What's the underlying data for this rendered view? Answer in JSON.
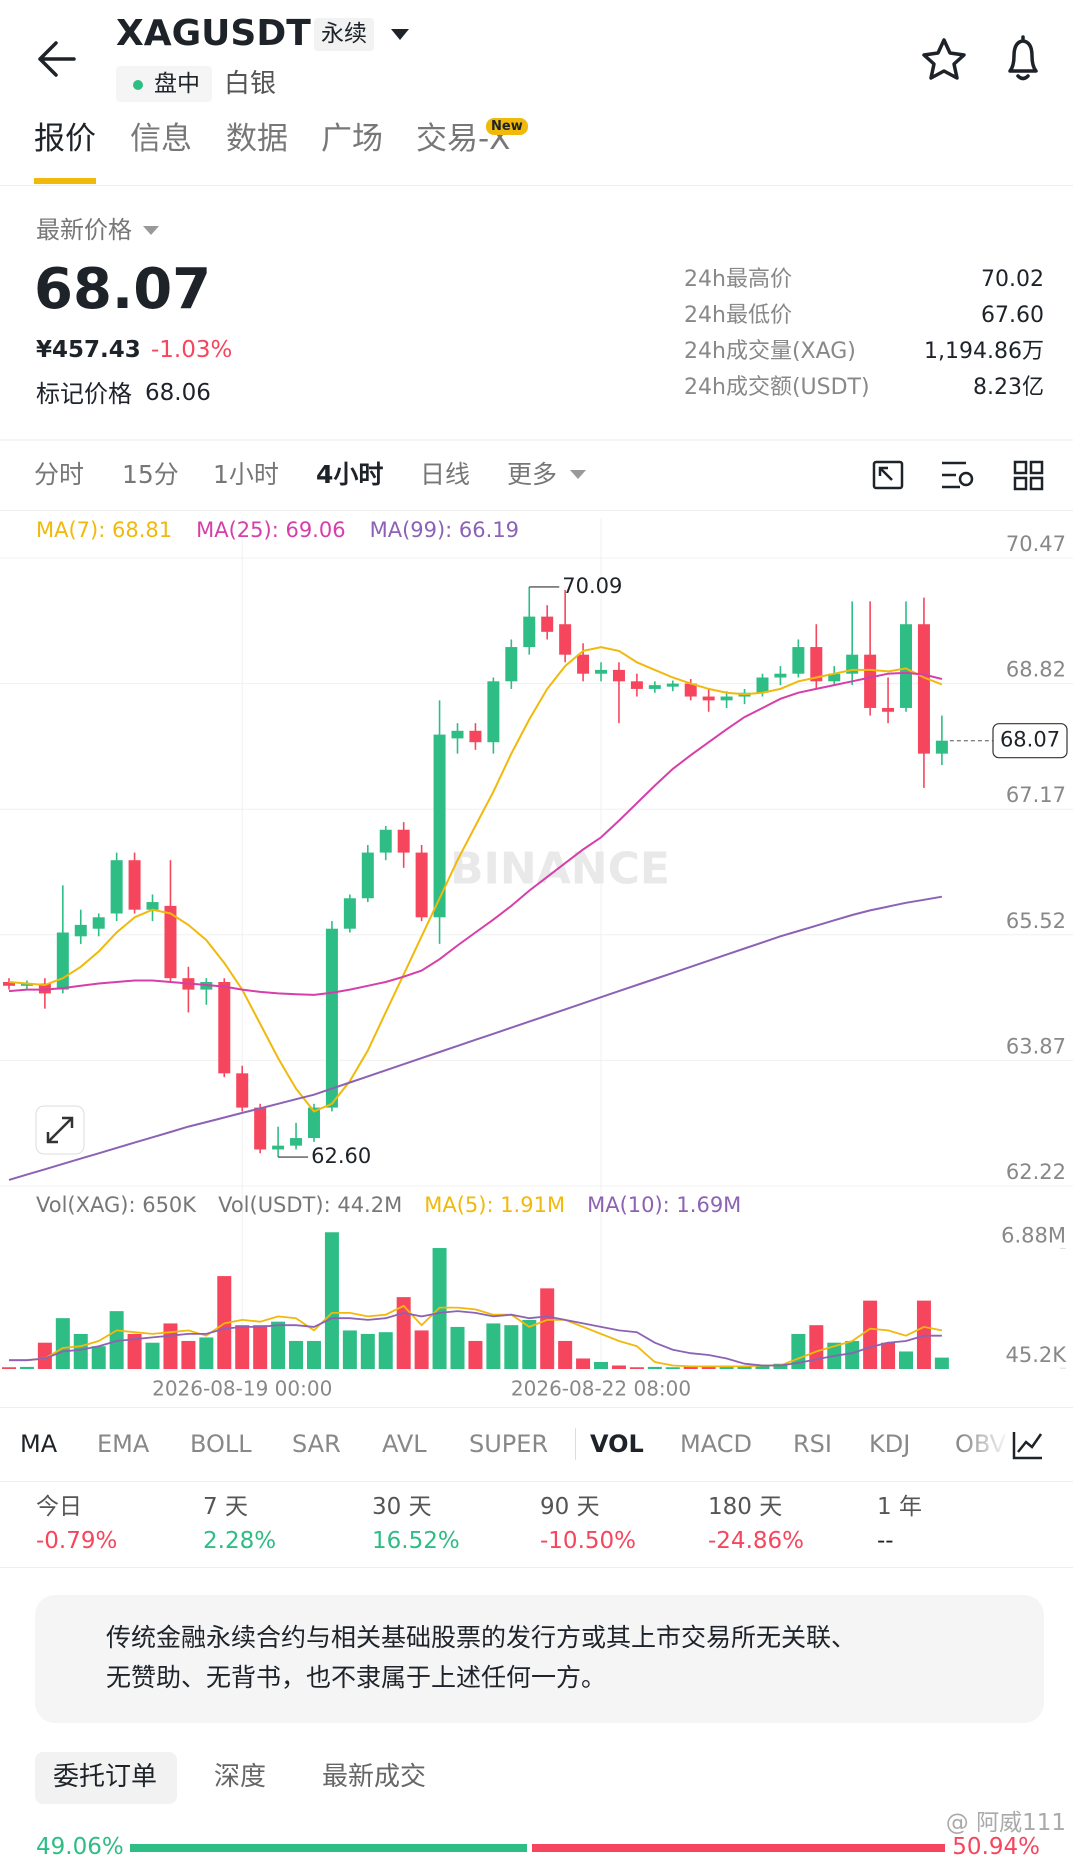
{
  "header": {
    "title": "XAGUSDT",
    "contract": "永续",
    "status": "盘中",
    "name": "白银"
  },
  "tabs": [
    "报价",
    "信息",
    "数据",
    "广场",
    "交易-X"
  ],
  "new_badge": "New",
  "price": {
    "label": "最新价格",
    "last": "68.07",
    "cny": "¥457.43",
    "change": "-1.03%",
    "mark_label": "标记价格",
    "mark": "68.06"
  },
  "stats": [
    [
      "24h最高价",
      "70.02"
    ],
    [
      "24h最低价",
      "67.60"
    ],
    [
      "24h成交量(XAG)",
      "1,194.86万"
    ],
    [
      "24h成交额(USDT)",
      "8.23亿"
    ]
  ],
  "intervals": [
    "分时",
    "15分",
    "1小时",
    "4小时",
    "日线",
    "更多"
  ],
  "chart_data": {
    "type": "candlestick",
    "watermark": "BINANCE",
    "categories": [
      null,
      null,
      null,
      null,
      null,
      null,
      null,
      null,
      null,
      null,
      null,
      null,
      null,
      "2026-08-19 00:00",
      null,
      null,
      null,
      null,
      null,
      null,
      null,
      null,
      null,
      null,
      null,
      null,
      null,
      null,
      null,
      null,
      null,
      null,
      null,
      "2026-08-22 08:00",
      null,
      null,
      null,
      null,
      null,
      null,
      null,
      null,
      null,
      null,
      null,
      null,
      null,
      null,
      null,
      null,
      null,
      null,
      null
    ],
    "open": [
      64.9,
      64.85,
      64.88,
      64.8,
      65.5,
      65.6,
      65.8,
      66.5,
      65.85,
      65.9,
      64.95,
      64.8,
      64.9,
      63.7,
      63.25,
      62.7,
      62.75,
      62.85,
      63.25,
      65.6,
      66.0,
      66.6,
      66.9,
      66.6,
      65.75,
      68.1,
      68.2,
      68.05,
      68.85,
      69.3,
      69.7,
      69.6,
      69.2,
      68.95,
      69.0,
      68.85,
      68.75,
      68.78,
      68.82,
      68.65,
      68.6,
      68.65,
      68.7,
      68.9,
      68.95,
      69.3,
      68.85,
      68.95,
      69.2,
      68.5,
      68.5,
      69.6,
      67.9
    ],
    "high": [
      64.95,
      64.92,
      64.95,
      66.17,
      65.85,
      65.8,
      66.6,
      66.6,
      66.05,
      66.5,
      65.1,
      64.95,
      64.95,
      63.8,
      63.3,
      63.0,
      63.05,
      63.3,
      65.7,
      66.05,
      66.7,
      66.95,
      67.0,
      66.7,
      68.6,
      68.3,
      68.3,
      68.9,
      69.4,
      70.09,
      69.85,
      70.05,
      69.35,
      69.1,
      69.1,
      68.95,
      68.85,
      68.86,
      68.88,
      68.75,
      68.72,
      68.75,
      68.95,
      69.05,
      69.4,
      69.6,
      69.05,
      69.9,
      69.9,
      68.9,
      69.9,
      69.95,
      68.4
    ],
    "low": [
      64.8,
      64.8,
      64.55,
      64.75,
      65.4,
      65.5,
      65.7,
      65.8,
      65.7,
      64.9,
      64.5,
      64.6,
      63.65,
      63.2,
      62.65,
      62.6,
      62.7,
      62.8,
      63.2,
      65.55,
      65.95,
      66.5,
      66.4,
      65.7,
      65.4,
      67.9,
      67.95,
      67.9,
      68.75,
      69.2,
      69.4,
      69.1,
      68.85,
      68.85,
      68.3,
      68.65,
      68.7,
      68.72,
      68.6,
      68.45,
      68.5,
      68.55,
      68.65,
      68.8,
      68.9,
      68.75,
      68.8,
      68.8,
      68.4,
      68.3,
      68.45,
      67.45,
      67.75
    ],
    "close": [
      64.85,
      64.88,
      64.75,
      65.55,
      65.65,
      65.75,
      66.5,
      65.85,
      65.95,
      64.95,
      64.8,
      64.9,
      63.7,
      63.25,
      62.7,
      62.75,
      62.85,
      63.25,
      65.6,
      66.0,
      66.6,
      66.9,
      66.6,
      65.75,
      68.15,
      68.2,
      68.05,
      68.85,
      69.3,
      69.7,
      69.5,
      69.2,
      68.95,
      69.0,
      68.85,
      68.75,
      68.8,
      68.82,
      68.65,
      68.6,
      68.65,
      68.7,
      68.9,
      68.95,
      69.3,
      68.85,
      68.95,
      69.2,
      68.5,
      68.45,
      69.6,
      67.9,
      68.07
    ],
    "up_color": "#2ebd85",
    "down_color": "#f6465d",
    "ma": [
      {
        "name": "MA(7)",
        "label": "MA(7): 68.81",
        "color": "#f0b90b",
        "values": [
          64.9,
          64.88,
          64.86,
          64.95,
          65.1,
          65.3,
          65.55,
          65.75,
          65.85,
          65.8,
          65.65,
          65.45,
          65.15,
          64.8,
          64.35,
          63.9,
          63.5,
          63.2,
          63.3,
          63.6,
          64.0,
          64.5,
          65.0,
          65.5,
          66.0,
          66.5,
          66.95,
          67.4,
          67.9,
          68.35,
          68.75,
          69.05,
          69.25,
          69.3,
          69.25,
          69.1,
          69.0,
          68.9,
          68.82,
          68.75,
          68.7,
          68.68,
          68.7,
          68.75,
          68.85,
          68.9,
          68.95,
          69.0,
          69.0,
          68.98,
          69.02,
          68.9,
          68.81
        ]
      },
      {
        "name": "MA(25)",
        "label": "MA(25): 69.06",
        "color": "#d63fa8",
        "values": [
          64.78,
          64.8,
          64.8,
          64.82,
          64.85,
          64.88,
          64.9,
          64.92,
          64.92,
          64.9,
          64.88,
          64.86,
          64.84,
          64.8,
          64.77,
          64.75,
          64.74,
          64.73,
          64.76,
          64.8,
          64.85,
          64.9,
          64.97,
          65.05,
          65.2,
          65.38,
          65.55,
          65.72,
          65.9,
          66.1,
          66.28,
          66.46,
          66.64,
          66.8,
          67.02,
          67.25,
          67.48,
          67.7,
          67.88,
          68.05,
          68.22,
          68.38,
          68.5,
          68.62,
          68.7,
          68.75,
          68.8,
          68.85,
          68.9,
          68.95,
          68.96,
          68.94,
          68.88
        ]
      },
      {
        "name": "MA(99)",
        "label": "MA(99): 66.19",
        "color": "#8c62b5",
        "values": [
          62.3,
          62.37,
          62.44,
          62.51,
          62.58,
          62.65,
          62.72,
          62.79,
          62.86,
          62.93,
          63.0,
          63.06,
          63.12,
          63.18,
          63.24,
          63.3,
          63.36,
          63.42,
          63.5,
          63.58,
          63.66,
          63.74,
          63.82,
          63.9,
          63.98,
          64.06,
          64.14,
          64.22,
          64.3,
          64.38,
          64.46,
          64.54,
          64.62,
          64.7,
          64.78,
          64.86,
          64.94,
          65.02,
          65.1,
          65.18,
          65.26,
          65.34,
          65.42,
          65.5,
          65.57,
          65.64,
          65.71,
          65.78,
          65.84,
          65.89,
          65.94,
          65.98,
          66.02
        ]
      }
    ],
    "extremes": {
      "high": {
        "value": 70.09,
        "label": "70.09"
      },
      "low": {
        "value": 62.6,
        "label": "62.60"
      }
    },
    "last_price": 68.07,
    "ylim": [
      62.22,
      70.47
    ],
    "yticks": [
      70.47,
      68.82,
      67.17,
      65.52,
      63.87,
      62.22
    ],
    "grid": true,
    "volume": {
      "labels": [
        "Vol(XAG): 650K",
        "Vol(USDT): 44.2M"
      ],
      "values": [
        100000,
        120000,
        1500000,
        2900000,
        2000000,
        1300000,
        3300000,
        2000000,
        1500000,
        2600000,
        1600000,
        1800000,
        5300000,
        2500000,
        2500000,
        2700000,
        1600000,
        1600000,
        7800000,
        2200000,
        2000000,
        2100000,
        4100000,
        2200000,
        6900000,
        2400000,
        1600000,
        2600000,
        2500000,
        2800000,
        4600000,
        1600000,
        600000,
        400000,
        200000,
        100000,
        120000,
        100000,
        150000,
        120000,
        180000,
        200000,
        200000,
        300000,
        2000000,
        2500000,
        1500000,
        1600000,
        3900000,
        1500000,
        1000000,
        3900000,
        650000
      ],
      "ma": [
        {
          "name": "MA(5)",
          "label": "MA(5): 1.91M",
          "color": "#f0b90b",
          "values": [
            500000,
            500000,
            600000,
            1200000,
            1300000,
            1600000,
            2200000,
            2100000,
            2000000,
            2100000,
            2200000,
            1900000,
            2600000,
            2800000,
            2700000,
            3000000,
            2900000,
            2200000,
            3200000,
            3200000,
            3000000,
            3100000,
            3600000,
            2500000,
            3500000,
            3500000,
            3400000,
            3100000,
            3100000,
            2400000,
            2800000,
            2800000,
            2400000,
            2000000,
            1600000,
            1300000,
            400000,
            200000,
            150000,
            150000,
            150000,
            150000,
            200000,
            200000,
            600000,
            1000000,
            1300000,
            1600000,
            2300000,
            2200000,
            1900000,
            2400000,
            2200000
          ]
        },
        {
          "name": "MA(10)",
          "label": "MA(10): 1.69M",
          "color": "#8c62b5",
          "values": [
            500000,
            500000,
            600000,
            1000000,
            1100000,
            1300000,
            1600000,
            1700000,
            1800000,
            1900000,
            2000000,
            2000000,
            2300000,
            2400000,
            2400000,
            2500000,
            2500000,
            2400000,
            2900000,
            2900000,
            2800000,
            2900000,
            3200000,
            3000000,
            3200000,
            3300000,
            3200000,
            3000000,
            3100000,
            2900000,
            3000000,
            2800000,
            2600000,
            2400000,
            2200000,
            2100000,
            1500000,
            1100000,
            900000,
            800000,
            600000,
            300000,
            200000,
            200000,
            350000,
            550000,
            750000,
            900000,
            1250000,
            1500000,
            1600000,
            1900000,
            1900000
          ]
        }
      ],
      "ylim": [
        0,
        8100000
      ],
      "yticks": [
        {
          "value": 6880000,
          "label": "6.88M"
        },
        {
          "value": 45200,
          "label": "45.2K"
        }
      ]
    }
  },
  "indicators": [
    "MA",
    "EMA",
    "BOLL",
    "SAR",
    "AVL",
    "SUPER",
    "VOL",
    "MACD",
    "RSI",
    "KDJ",
    "OBV"
  ],
  "performance": [
    {
      "label": "今日",
      "value": "-0.79%"
    },
    {
      "label": "7 天",
      "value": "2.28%"
    },
    {
      "label": "30 天",
      "value": "16.52%"
    },
    {
      "label": "90 天",
      "value": "-10.50%"
    },
    {
      "label": "180 天",
      "value": "-24.86%"
    },
    {
      "label": "1 年",
      "value": "--"
    }
  ],
  "notice": [
    "传统金融永续合约与相关基础股票的发行方或其上市交易所无关联、",
    "无赞助、无背书，也不隶属于上述任何一方。"
  ],
  "order_tabs": [
    "委托订单",
    "深度",
    "最新成交"
  ],
  "ratio": {
    "buy": {
      "value": 49.06,
      "label": "49.06%"
    },
    "sell": {
      "value": 50.94,
      "label": "50.94%"
    }
  },
  "watermark": "@ 阿威111"
}
